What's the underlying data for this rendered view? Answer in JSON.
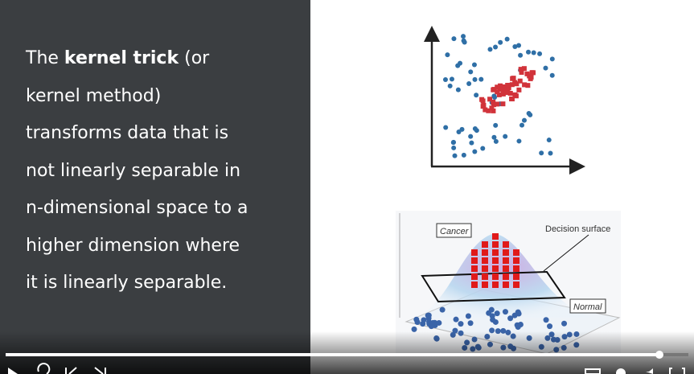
{
  "slide": {
    "intro": {
      "before": "The",
      "bold": "kernel trick",
      "after": "(or"
    },
    "lines": [
      "kernel method)",
      "transforms data that is",
      "not linearly separable in",
      "n-dimensional space to a",
      "higher dimension where",
      "it is linearly separable."
    ],
    "figure_labels": {
      "cancer": "Cancer",
      "decision_surface": "Decision surface",
      "normal": "Normal"
    }
  }
}
